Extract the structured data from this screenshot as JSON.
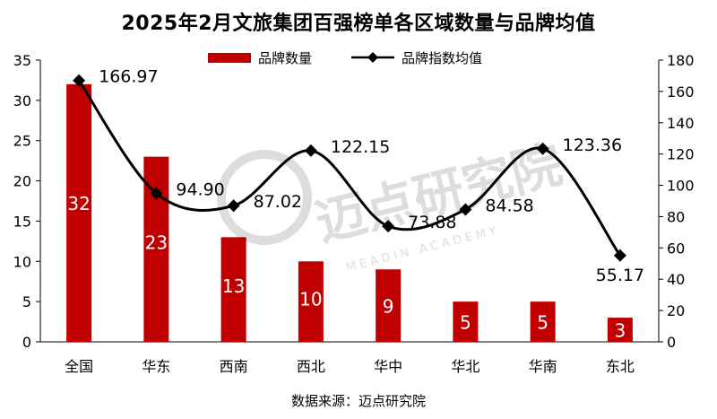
{
  "chart_data": {
    "type": "bar+line",
    "title": "2025年2月文旅集团百强榜单各区域数量与品牌均值",
    "categories": [
      "全国",
      "华东",
      "西南",
      "西北",
      "华中",
      "华北",
      "华南",
      "东北"
    ],
    "series": [
      {
        "name": "品牌数量",
        "type": "bar",
        "axis": "left",
        "color": "#C00000",
        "values": [
          32,
          23,
          13,
          10,
          9,
          5,
          5,
          3
        ]
      },
      {
        "name": "品牌指数均值",
        "type": "line",
        "axis": "right",
        "color": "#000000",
        "values": [
          166.97,
          94.9,
          87.02,
          122.15,
          73.88,
          84.58,
          123.36,
          55.17
        ]
      }
    ],
    "y_left": {
      "min": 0,
      "max": 35,
      "step": 5,
      "ticks": [
        "0",
        "5",
        "10",
        "15",
        "20",
        "25",
        "30",
        "35"
      ]
    },
    "y_right": {
      "min": 0,
      "max": 180,
      "step": 20,
      "ticks": [
        "0",
        "20",
        "40",
        "60",
        "80",
        "100",
        "120",
        "140",
        "160",
        "180"
      ]
    },
    "bar_labels": [
      "32",
      "23",
      "13",
      "10",
      "9",
      "5",
      "5",
      "3"
    ],
    "line_labels": [
      "166.97",
      "94.90",
      "87.02",
      "122.15",
      "73.88",
      "84.58",
      "123.36",
      "55.17"
    ],
    "grid": false,
    "legend": "top"
  },
  "source": "数据来源：迈点研究院",
  "watermark": {
    "text": "迈点研究院",
    "subtext": "MEADIN ACADEMY"
  }
}
